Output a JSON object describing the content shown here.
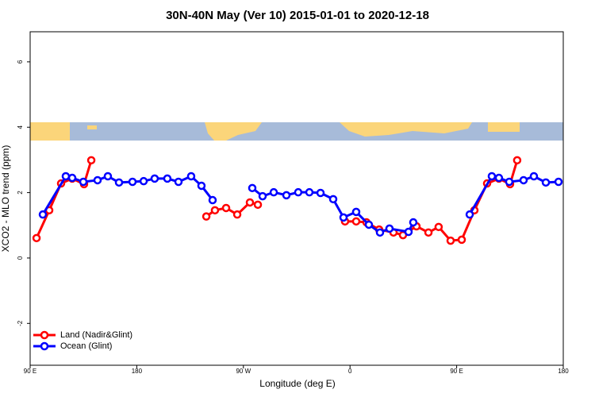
{
  "chart_data": {
    "type": "line",
    "title": "30N-40N May (Ver 10)   2015-01-01 to 2020-12-18",
    "x_label": "Longitude (deg E)",
    "y_label": "XCO2 - MLO trend (ppm)",
    "xlim": [
      90,
      540
    ],
    "ylim": [
      -3.28,
      6.92
    ],
    "xticks": [
      {
        "value": 90,
        "label": "90 E"
      },
      180,
      {
        "value": 270,
        "label": "90 W"
      },
      {
        "value": 360,
        "label": "0"
      },
      {
        "value": 450,
        "label": "90 E"
      },
      {
        "value": 540,
        "label": "180"
      }
    ],
    "yticks": [
      -2,
      0,
      2,
      4,
      6
    ],
    "legend": "bottom-left",
    "series": [
      {
        "name": "Land (Nadir&Glint)",
        "color": "#ff0000",
        "x": [
          95.4,
          106.1,
          116.1,
          125.5,
          135.5,
          141.6,
          null,
          238.7,
          246.0,
          255.4,
          264.8,
          275.5,
          282.2,
          null,
          355.8,
          365.2,
          373.9,
          384.6,
          396.7,
          404.7,
          416.1,
          426.2,
          434.8,
          444.9,
          454.3,
          465.0,
          475.7,
          485.7,
          495.1,
          501.1
        ],
        "values": [
          0.61,
          1.46,
          2.28,
          2.43,
          2.26,
          2.99,
          null,
          1.27,
          1.46,
          1.53,
          1.33,
          1.7,
          1.63,
          null,
          1.12,
          1.12,
          1.09,
          0.87,
          0.78,
          0.7,
          0.97,
          0.78,
          0.95,
          0.53,
          0.56,
          1.46,
          2.28,
          2.43,
          2.26,
          2.99
        ]
      },
      {
        "name": "Ocean (Glint)",
        "color": "#0000ff",
        "x": [
          100.7,
          120.1,
          125.5,
          134.9,
          146.9,
          155.6,
          165.0,
          176.4,
          185.8,
          195.1,
          205.8,
          215.2,
          225.9,
          234.6,
          244.0,
          null,
          277.5,
          286.2,
          295.6,
          306.3,
          316.3,
          325.7,
          335.1,
          345.8,
          354.5,
          365.2,
          375.9,
          385.3,
          393.3,
          409.4,
          413.4,
          null,
          461.0,
          479.7,
          485.7,
          494.4,
          506.5,
          515.2,
          525.3,
          536.0
        ],
        "values": [
          1.33,
          2.5,
          2.45,
          2.33,
          2.38,
          2.5,
          2.31,
          2.33,
          2.35,
          2.43,
          2.43,
          2.33,
          2.5,
          2.21,
          1.77,
          null,
          2.14,
          1.89,
          2.01,
          1.92,
          2.01,
          2.01,
          1.99,
          1.8,
          1.24,
          1.41,
          1.02,
          0.78,
          0.9,
          0.8,
          1.09,
          null,
          1.33,
          2.5,
          2.45,
          2.33,
          2.38,
          2.5,
          2.31,
          2.33
        ]
      }
    ]
  }
}
